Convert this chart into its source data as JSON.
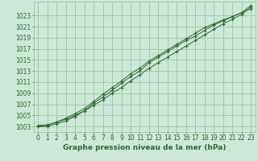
{
  "title": "Graphe pression niveau de la mer (hPa)",
  "xlabel_hours": [
    0,
    1,
    2,
    3,
    4,
    5,
    6,
    7,
    8,
    9,
    10,
    11,
    12,
    13,
    14,
    15,
    16,
    17,
    18,
    19,
    20,
    21,
    22,
    23
  ],
  "line1": [
    1003.0,
    1003.2,
    1003.8,
    1004.3,
    1005.0,
    1005.8,
    1006.8,
    1007.8,
    1009.0,
    1010.0,
    1011.2,
    1012.3,
    1013.5,
    1014.5,
    1015.5,
    1016.5,
    1017.5,
    1018.5,
    1019.5,
    1020.5,
    1021.5,
    1022.3,
    1023.2,
    1024.5
  ],
  "line2": [
    1003.2,
    1003.3,
    1003.8,
    1004.5,
    1005.3,
    1006.2,
    1007.5,
    1008.8,
    1010.0,
    1011.2,
    1012.5,
    1013.5,
    1014.8,
    1015.8,
    1016.8,
    1017.8,
    1018.8,
    1019.8,
    1020.8,
    1021.5,
    1022.2,
    1022.8,
    1023.5,
    1024.8
  ],
  "line3": [
    1003.0,
    1003.0,
    1003.5,
    1004.0,
    1004.8,
    1005.8,
    1007.2,
    1008.3,
    1009.5,
    1010.8,
    1012.0,
    1013.0,
    1014.5,
    1015.5,
    1016.5,
    1017.5,
    1018.5,
    1019.3,
    1020.3,
    1021.3,
    1022.0,
    1022.8,
    1023.5,
    1024.2
  ],
  "line_color": "#2d6a2d",
  "bg_color": "#cce8d8",
  "grid_color": "#99bb99",
  "ylabel_values": [
    1003,
    1005,
    1007,
    1009,
    1011,
    1013,
    1015,
    1017,
    1019,
    1021,
    1023
  ],
  "ylim": [
    1002.0,
    1025.5
  ],
  "xlim": [
    -0.5,
    23.5
  ],
  "title_color": "#2d6a2d",
  "title_fontsize": 6.5,
  "tick_fontsize": 5.5,
  "marker": "+",
  "marker_size": 3.5,
  "linewidth": 0.7
}
